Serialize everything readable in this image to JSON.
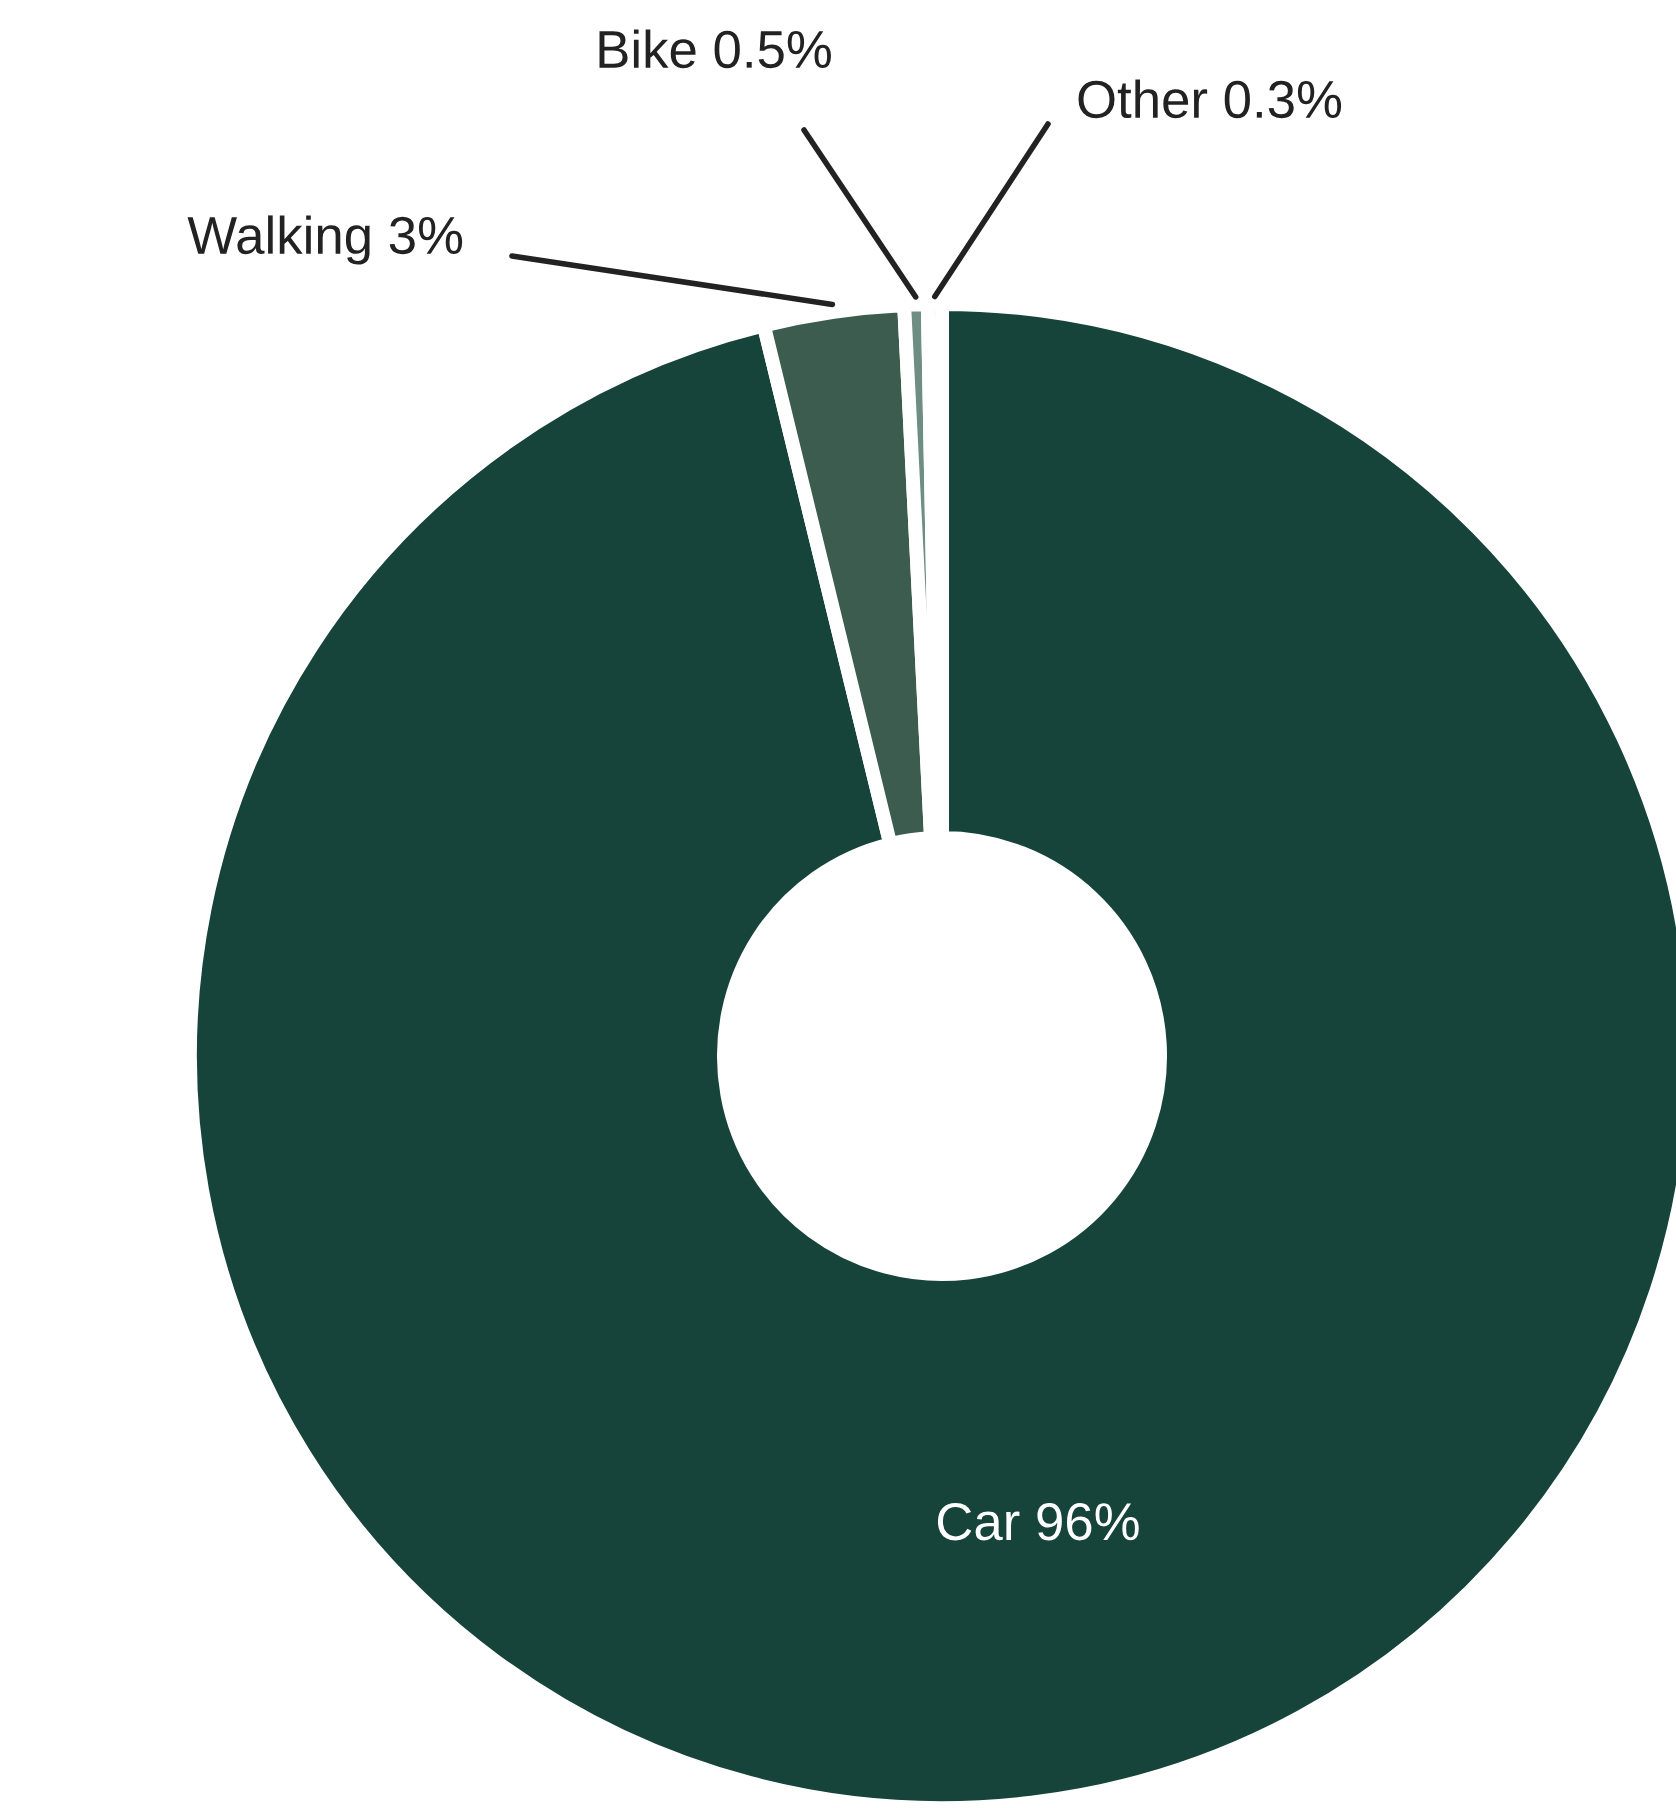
{
  "chart_data": {
    "type": "donut",
    "categories": [
      "Car",
      "Walking",
      "Bike",
      "Other"
    ],
    "values": [
      96,
      3,
      0.5,
      0.3
    ],
    "colors": [
      "#16443a",
      "#3d5c50",
      "#6e8e83",
      "#a3b8b1"
    ],
    "value_labels": [
      "96%",
      "3%",
      "0.5%",
      "0.3%"
    ]
  }
}
